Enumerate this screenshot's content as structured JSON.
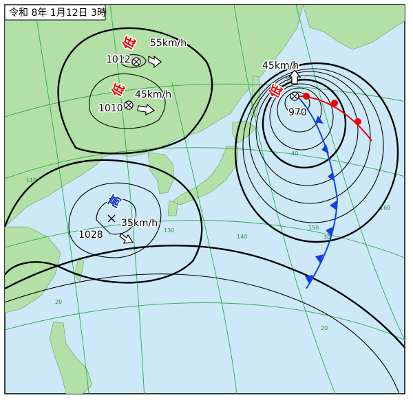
{
  "title": "令和 8年 1月12日 3時",
  "systems": [
    {
      "kind": "低",
      "speed": "55km/h",
      "pressure": "1012"
    },
    {
      "kind": "低",
      "speed": "45km/h",
      "pressure": "1010"
    },
    {
      "kind": "高",
      "speed": "35km/h",
      "pressure": "1028"
    },
    {
      "kind": "低",
      "speed": "45km/h",
      "pressure": "970"
    }
  ],
  "grid_labels": [
    "110",
    "130",
    "140",
    "150",
    "160",
    "50",
    "40",
    "30",
    "20",
    "20"
  ]
}
